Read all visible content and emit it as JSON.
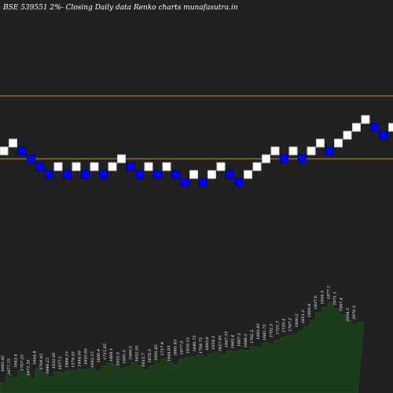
{
  "title": "BSE 539551 2%-  Closing Daily data  Renko  charts munafasutra.in",
  "colors": {
    "background": "#212121",
    "up_brick": "#ffffff",
    "down_brick": "#0000ff",
    "support_resistance_line": "#c8822a",
    "volume_fill": "#1c3a1c",
    "text": "#ffffff"
  },
  "chart_data": {
    "type": "renko",
    "brick_size_percent": 2,
    "bricks": [
      {
        "index": 0,
        "level": 0,
        "direction": "up"
      },
      {
        "index": 1,
        "level": 1,
        "direction": "up"
      },
      {
        "index": 2,
        "level": 0,
        "direction": "down"
      },
      {
        "index": 3,
        "level": -1,
        "direction": "down"
      },
      {
        "index": 4,
        "level": -2,
        "direction": "down"
      },
      {
        "index": 5,
        "level": -3,
        "direction": "down"
      },
      {
        "index": 6,
        "level": -2,
        "direction": "up"
      },
      {
        "index": 7,
        "level": -3,
        "direction": "down"
      },
      {
        "index": 8,
        "level": -2,
        "direction": "up"
      },
      {
        "index": 9,
        "level": -3,
        "direction": "down"
      },
      {
        "index": 10,
        "level": -2,
        "direction": "up"
      },
      {
        "index": 11,
        "level": -3,
        "direction": "down"
      },
      {
        "index": 12,
        "level": -2,
        "direction": "up"
      },
      {
        "index": 13,
        "level": -1,
        "direction": "up"
      },
      {
        "index": 14,
        "level": -2,
        "direction": "down"
      },
      {
        "index": 15,
        "level": -3,
        "direction": "down"
      },
      {
        "index": 16,
        "level": -2,
        "direction": "up"
      },
      {
        "index": 17,
        "level": -3,
        "direction": "down"
      },
      {
        "index": 18,
        "level": -2,
        "direction": "up"
      },
      {
        "index": 19,
        "level": -3,
        "direction": "down"
      },
      {
        "index": 20,
        "level": -4,
        "direction": "down"
      },
      {
        "index": 21,
        "level": -3,
        "direction": "up"
      },
      {
        "index": 22,
        "level": -4,
        "direction": "down"
      },
      {
        "index": 23,
        "level": -3,
        "direction": "up"
      },
      {
        "index": 24,
        "level": -2,
        "direction": "up"
      },
      {
        "index": 25,
        "level": -3,
        "direction": "down"
      },
      {
        "index": 26,
        "level": -4,
        "direction": "down"
      },
      {
        "index": 27,
        "level": -3,
        "direction": "up"
      },
      {
        "index": 28,
        "level": -2,
        "direction": "up"
      },
      {
        "index": 29,
        "level": -1,
        "direction": "up"
      },
      {
        "index": 30,
        "level": 0,
        "direction": "up"
      },
      {
        "index": 31,
        "level": -1,
        "direction": "down"
      },
      {
        "index": 32,
        "level": 0,
        "direction": "up"
      },
      {
        "index": 33,
        "level": -1,
        "direction": "down"
      },
      {
        "index": 34,
        "level": 0,
        "direction": "up"
      },
      {
        "index": 35,
        "level": 1,
        "direction": "up"
      },
      {
        "index": 36,
        "level": 0,
        "direction": "down"
      },
      {
        "index": 37,
        "level": 1,
        "direction": "up"
      },
      {
        "index": 38,
        "level": 2,
        "direction": "up"
      },
      {
        "index": 39,
        "level": 3,
        "direction": "up"
      },
      {
        "index": 40,
        "level": 4,
        "direction": "up"
      },
      {
        "index": 41,
        "level": 3,
        "direction": "down"
      },
      {
        "index": 42,
        "level": 2,
        "direction": "down"
      },
      {
        "index": 43,
        "level": 3,
        "direction": "up"
      },
      {
        "index": 44,
        "level": 2,
        "direction": "down"
      },
      {
        "index": 45,
        "level": 3,
        "direction": "up"
      },
      {
        "index": 46,
        "level": 4,
        "direction": "up"
      },
      {
        "index": 47,
        "level": 5,
        "direction": "up"
      },
      {
        "index": 48,
        "level": 6,
        "direction": "up"
      },
      {
        "index": 49,
        "level": 5,
        "direction": "down"
      },
      {
        "index": 50,
        "level": 6,
        "direction": "up"
      },
      {
        "index": 51,
        "level": 7,
        "direction": "up"
      },
      {
        "index": 52,
        "level": 6,
        "direction": "down"
      },
      {
        "index": 53,
        "level": 5,
        "direction": "down"
      },
      {
        "index": 54,
        "level": 4,
        "direction": "down"
      },
      {
        "index": 55,
        "level": 5,
        "direction": "up"
      }
    ],
    "horizontal_lines": [
      {
        "name": "resistance",
        "level": 6.5
      },
      {
        "name": "support",
        "level": -1.5
      }
    ],
    "volume_labels": [
      "1643.45",
      "1677.75",
      "1643.4",
      "1707.25",
      "1671.35",
      "1644.9",
      "1709.45",
      "1640.25",
      "1632.95",
      "1677.1",
      "1686.15",
      "1579.55",
      "1644.95",
      "1645.05",
      "1642.15",
      "1690.4",
      "1715.85",
      "1608.1",
      "1655.5",
      "1691.3",
      "1660.5",
      "1632.55",
      "1615.7",
      "1672.5",
      "1695.85",
      "1717.4",
      "1644.05",
      "1661.65",
      "1677.5",
      "1659.15",
      "1640.75",
      "1708.75",
      "1693.6",
      "1654.3",
      "1627.95",
      "1647.75",
      "1663.4",
      "1667.2",
      "1688.2",
      "1702.3",
      "1663.85",
      "1683.75",
      "1702.3",
      "1721.7",
      "1739.4",
      "1767.2",
      "1800.2",
      "1811.2",
      "1800.8",
      "1837.6",
      "1856.5",
      "1877.1",
      "1971.1",
      "1997.4",
      "2004.5",
      "2070.3"
    ],
    "volume_levels": [
      0.1,
      0.18,
      0.15,
      0.22,
      0.19,
      0.14,
      0.25,
      0.2,
      0.16,
      0.21,
      0.2,
      0.22,
      0.22,
      0.24,
      0.23,
      0.25,
      0.22,
      0.27,
      0.3,
      0.28,
      0.24,
      0.26,
      0.3,
      0.28,
      0.23,
      0.27,
      0.29,
      0.34,
      0.3,
      0.28,
      0.34,
      0.35,
      0.36,
      0.38,
      0.36,
      0.39,
      0.4,
      0.38,
      0.42,
      0.41,
      0.43,
      0.42,
      0.46,
      0.45,
      0.5,
      0.49,
      0.52,
      0.55,
      0.57,
      0.58,
      0.62,
      0.66,
      0.72,
      0.8,
      0.85,
      0.9,
      0.84,
      0.78,
      0.72,
      0.68,
      0.7
    ]
  }
}
